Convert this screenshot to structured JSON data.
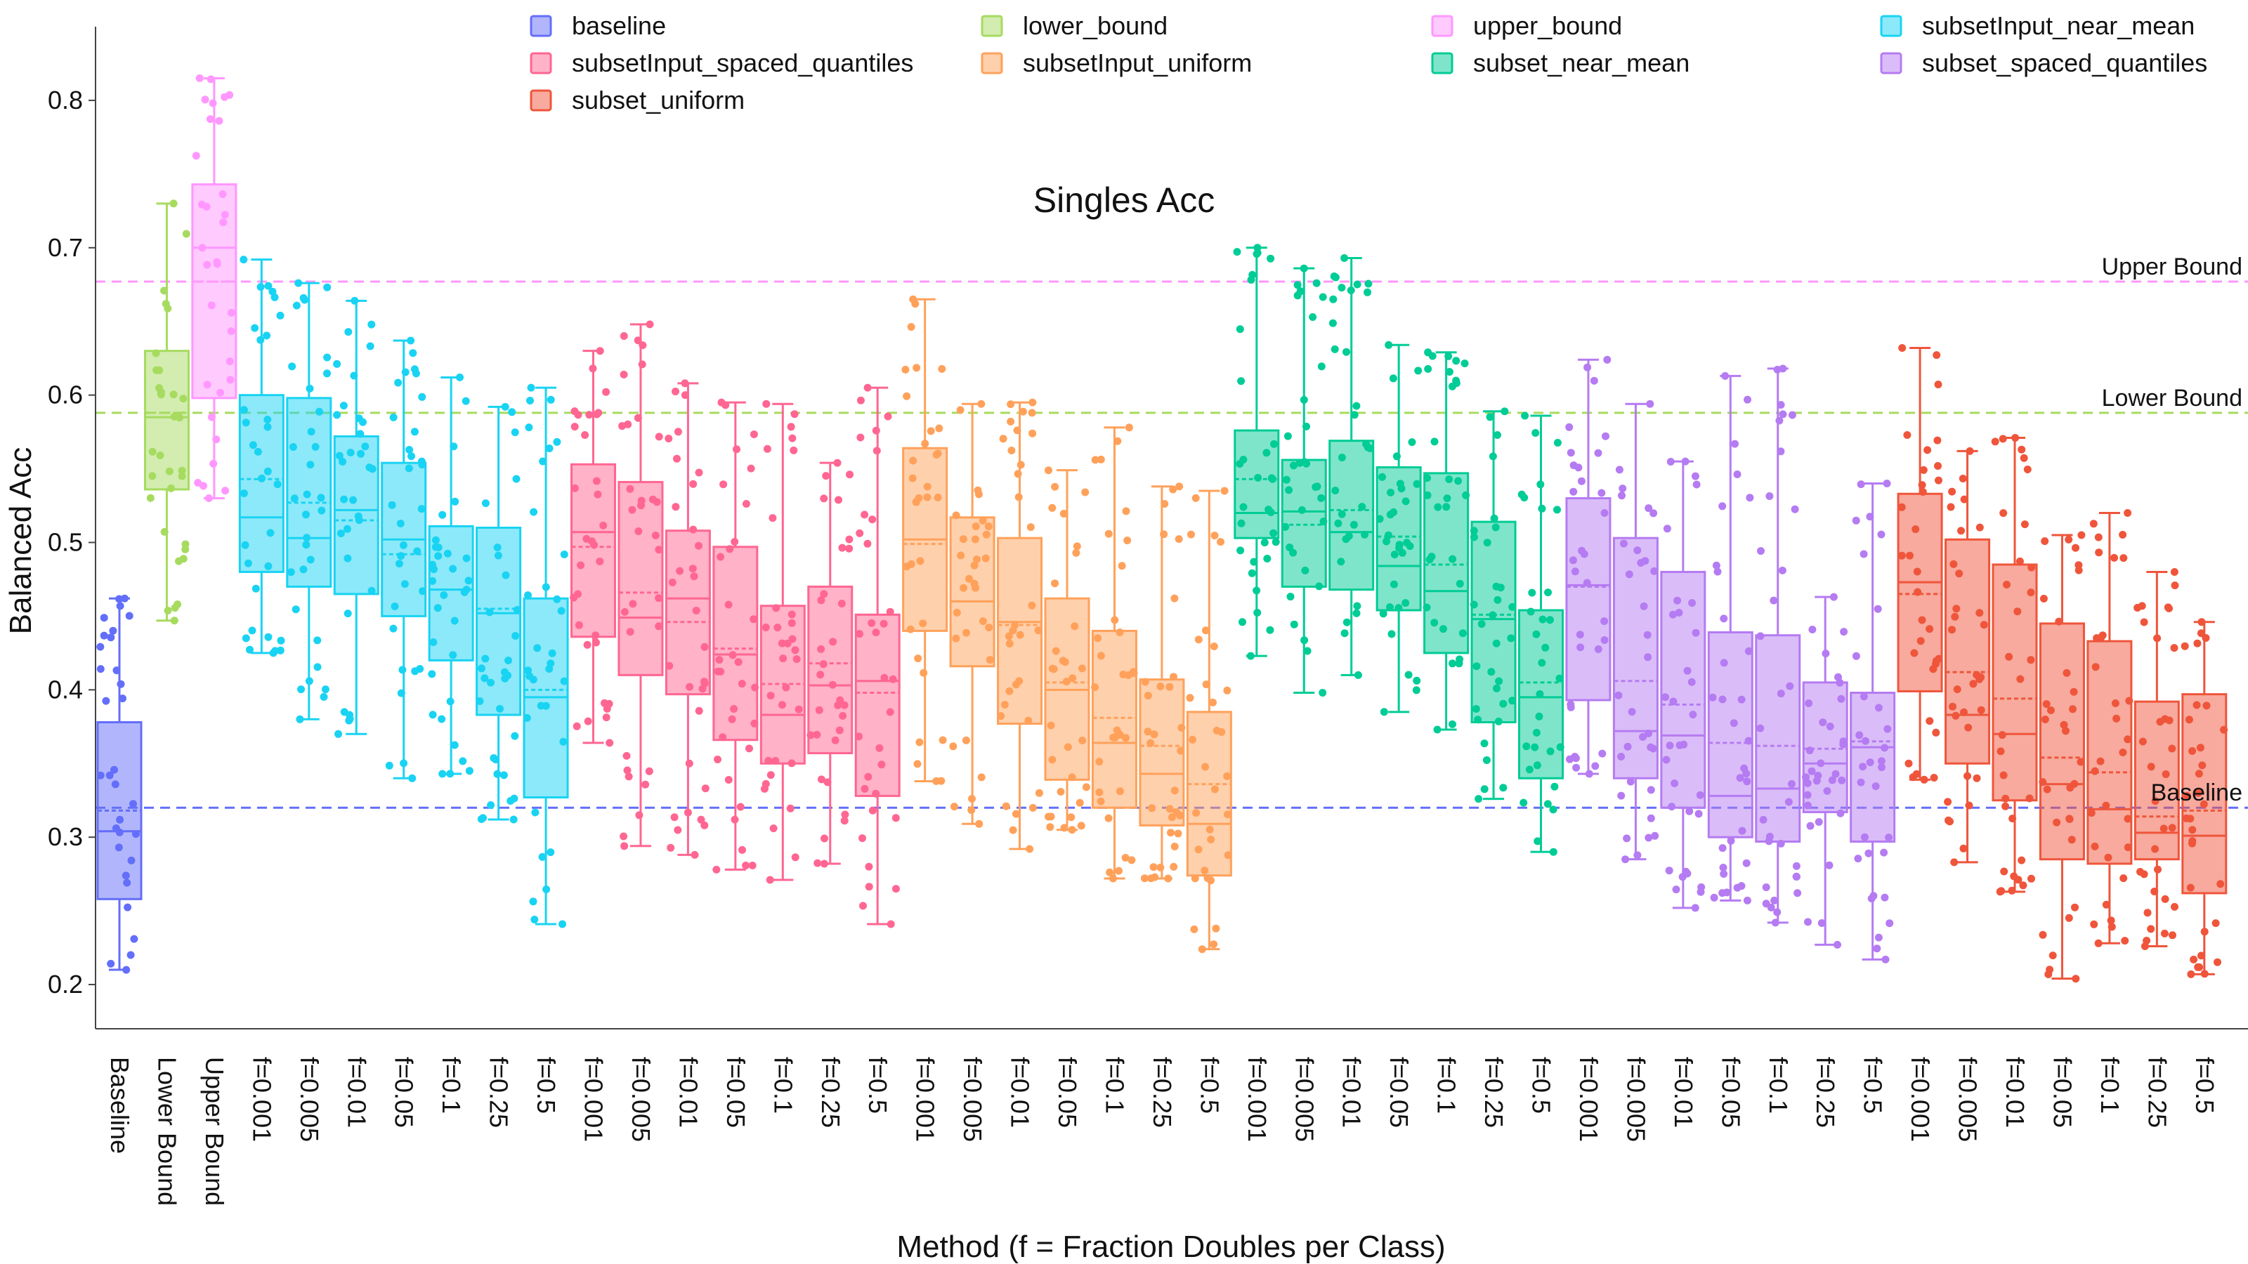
{
  "chart_data": {
    "type": "box",
    "title": "Singles Acc",
    "xlabel": "Method (f = Fraction Doubles per Class)",
    "ylabel": "Balanced Acc",
    "ylim": [
      0.17,
      0.85
    ],
    "yticks": [
      0.2,
      0.3,
      0.4,
      0.5,
      0.6,
      0.7,
      0.8
    ],
    "legend_position": "top",
    "groups": [
      {
        "key": "baseline",
        "name": "baseline",
        "color": "#636EFA"
      },
      {
        "key": "lower_bound",
        "name": "lower_bound",
        "color": "#A6DB5F"
      },
      {
        "key": "upper_bound",
        "name": "upper_bound",
        "color": "#FF97FF"
      },
      {
        "key": "subsetInput_near_mean",
        "name": "subsetInput_near_mean",
        "color": "#19D3F3"
      },
      {
        "key": "subsetInput_spaced_quantiles",
        "name": "subsetInput_spaced_quantiles",
        "color": "#FF6692"
      },
      {
        "key": "subsetInput_uniform",
        "name": "subsetInput_uniform",
        "color": "#FFA15A"
      },
      {
        "key": "subset_near_mean",
        "name": "subset_near_mean",
        "color": "#00CC96"
      },
      {
        "key": "subset_spaced_quantiles",
        "name": "subset_spaced_quantiles",
        "color": "#B57BF2"
      },
      {
        "key": "subset_uniform",
        "name": "subset_uniform",
        "color": "#EF553B"
      }
    ],
    "legend_order": [
      "baseline",
      "lower_bound",
      "upper_bound",
      "subsetInput_near_mean",
      "subsetInput_spaced_quantiles",
      "subsetInput_uniform",
      "subset_near_mean",
      "subset_spaced_quantiles",
      "subset_uniform"
    ],
    "reference_lines": [
      {
        "label": "Upper Bound",
        "value": 0.677,
        "color": "#FF97FF"
      },
      {
        "label": "Lower Bound",
        "value": 0.588,
        "color": "#A6DB5F"
      },
      {
        "label": "Baseline",
        "value": 0.32,
        "color": "#636EFA"
      }
    ],
    "categories": [
      {
        "label": "Baseline",
        "group": "baseline",
        "min": 0.21,
        "q1": 0.258,
        "median": 0.304,
        "mean": 0.318,
        "q3": 0.378,
        "max": 0.462
      },
      {
        "label": "Lower Bound",
        "group": "lower_bound",
        "min": 0.447,
        "q1": 0.536,
        "median": 0.585,
        "mean": 0.588,
        "q3": 0.63,
        "max": 0.73
      },
      {
        "label": "Upper Bound",
        "group": "upper_bound",
        "min": 0.53,
        "q1": 0.598,
        "median": 0.7,
        "mean": 0.677,
        "q3": 0.743,
        "max": 0.815
      },
      {
        "label": "f=0.001",
        "group": "subsetInput_near_mean",
        "min": 0.425,
        "q1": 0.48,
        "median": 0.517,
        "mean": 0.543,
        "q3": 0.6,
        "max": 0.692
      },
      {
        "label": "f=0.005",
        "group": "subsetInput_near_mean",
        "min": 0.38,
        "q1": 0.47,
        "median": 0.503,
        "mean": 0.527,
        "q3": 0.598,
        "max": 0.676
      },
      {
        "label": "f=0.01",
        "group": "subsetInput_near_mean",
        "min": 0.37,
        "q1": 0.465,
        "median": 0.522,
        "mean": 0.515,
        "q3": 0.572,
        "max": 0.664
      },
      {
        "label": "f=0.05",
        "group": "subsetInput_near_mean",
        "min": 0.34,
        "q1": 0.45,
        "median": 0.502,
        "mean": 0.492,
        "q3": 0.554,
        "max": 0.637
      },
      {
        "label": "f=0.1",
        "group": "subsetInput_near_mean",
        "min": 0.343,
        "q1": 0.42,
        "median": 0.468,
        "mean": 0.468,
        "q3": 0.511,
        "max": 0.612
      },
      {
        "label": "f=0.25",
        "group": "subsetInput_near_mean",
        "min": 0.312,
        "q1": 0.383,
        "median": 0.452,
        "mean": 0.455,
        "q3": 0.51,
        "max": 0.592
      },
      {
        "label": "f=0.5",
        "group": "subsetInput_near_mean",
        "min": 0.241,
        "q1": 0.327,
        "median": 0.395,
        "mean": 0.4,
        "q3": 0.462,
        "max": 0.605
      },
      {
        "label": "f=0.001",
        "group": "subsetInput_spaced_quantiles",
        "min": 0.364,
        "q1": 0.436,
        "median": 0.507,
        "mean": 0.497,
        "q3": 0.553,
        "max": 0.63
      },
      {
        "label": "f=0.005",
        "group": "subsetInput_spaced_quantiles",
        "min": 0.294,
        "q1": 0.41,
        "median": 0.449,
        "mean": 0.466,
        "q3": 0.541,
        "max": 0.648
      },
      {
        "label": "f=0.01",
        "group": "subsetInput_spaced_quantiles",
        "min": 0.288,
        "q1": 0.397,
        "median": 0.462,
        "mean": 0.446,
        "q3": 0.508,
        "max": 0.608
      },
      {
        "label": "f=0.05",
        "group": "subsetInput_spaced_quantiles",
        "min": 0.278,
        "q1": 0.366,
        "median": 0.424,
        "mean": 0.428,
        "q3": 0.497,
        "max": 0.595
      },
      {
        "label": "f=0.1",
        "group": "subsetInput_spaced_quantiles",
        "min": 0.271,
        "q1": 0.35,
        "median": 0.383,
        "mean": 0.404,
        "q3": 0.457,
        "max": 0.594
      },
      {
        "label": "f=0.25",
        "group": "subsetInput_spaced_quantiles",
        "min": 0.282,
        "q1": 0.357,
        "median": 0.403,
        "mean": 0.418,
        "q3": 0.47,
        "max": 0.554
      },
      {
        "label": "f=0.5",
        "group": "subsetInput_spaced_quantiles",
        "min": 0.241,
        "q1": 0.328,
        "median": 0.406,
        "mean": 0.398,
        "q3": 0.451,
        "max": 0.605
      },
      {
        "label": "f=0.001",
        "group": "subsetInput_uniform",
        "min": 0.338,
        "q1": 0.44,
        "median": 0.502,
        "mean": 0.499,
        "q3": 0.564,
        "max": 0.665
      },
      {
        "label": "f=0.005",
        "group": "subsetInput_uniform",
        "min": 0.309,
        "q1": 0.416,
        "median": 0.46,
        "mean": 0.46,
        "q3": 0.517,
        "max": 0.594
      },
      {
        "label": "f=0.01",
        "group": "subsetInput_uniform",
        "min": 0.292,
        "q1": 0.377,
        "median": 0.446,
        "mean": 0.444,
        "q3": 0.503,
        "max": 0.595
      },
      {
        "label": "f=0.05",
        "group": "subsetInput_uniform",
        "min": 0.305,
        "q1": 0.339,
        "median": 0.4,
        "mean": 0.405,
        "q3": 0.462,
        "max": 0.549
      },
      {
        "label": "f=0.1",
        "group": "subsetInput_uniform",
        "min": 0.272,
        "q1": 0.32,
        "median": 0.364,
        "mean": 0.381,
        "q3": 0.44,
        "max": 0.578
      },
      {
        "label": "f=0.25",
        "group": "subsetInput_uniform",
        "min": 0.272,
        "q1": 0.308,
        "median": 0.343,
        "mean": 0.362,
        "q3": 0.407,
        "max": 0.538
      },
      {
        "label": "f=0.5",
        "group": "subsetInput_uniform",
        "min": 0.224,
        "q1": 0.274,
        "median": 0.309,
        "mean": 0.336,
        "q3": 0.385,
        "max": 0.535
      },
      {
        "label": "f=0.001",
        "group": "subset_near_mean",
        "min": 0.423,
        "q1": 0.503,
        "median": 0.52,
        "mean": 0.543,
        "q3": 0.576,
        "max": 0.7
      },
      {
        "label": "f=0.005",
        "group": "subset_near_mean",
        "min": 0.398,
        "q1": 0.47,
        "median": 0.521,
        "mean": 0.512,
        "q3": 0.556,
        "max": 0.686
      },
      {
        "label": "f=0.01",
        "group": "subset_near_mean",
        "min": 0.41,
        "q1": 0.468,
        "median": 0.507,
        "mean": 0.522,
        "q3": 0.569,
        "max": 0.693
      },
      {
        "label": "f=0.05",
        "group": "subset_near_mean",
        "min": 0.385,
        "q1": 0.454,
        "median": 0.484,
        "mean": 0.504,
        "q3": 0.551,
        "max": 0.634
      },
      {
        "label": "f=0.1",
        "group": "subset_near_mean",
        "min": 0.373,
        "q1": 0.425,
        "median": 0.467,
        "mean": 0.485,
        "q3": 0.547,
        "max": 0.629
      },
      {
        "label": "f=0.25",
        "group": "subset_near_mean",
        "min": 0.326,
        "q1": 0.378,
        "median": 0.448,
        "mean": 0.451,
        "q3": 0.514,
        "max": 0.589
      },
      {
        "label": "f=0.5",
        "group": "subset_near_mean",
        "min": 0.29,
        "q1": 0.34,
        "median": 0.395,
        "mean": 0.405,
        "q3": 0.454,
        "max": 0.586
      },
      {
        "label": "f=0.001",
        "group": "subset_spaced_quantiles",
        "min": 0.343,
        "q1": 0.393,
        "median": 0.471,
        "mean": 0.47,
        "q3": 0.53,
        "max": 0.624
      },
      {
        "label": "f=0.005",
        "group": "subset_spaced_quantiles",
        "min": 0.285,
        "q1": 0.34,
        "median": 0.372,
        "mean": 0.406,
        "q3": 0.503,
        "max": 0.594
      },
      {
        "label": "f=0.01",
        "group": "subset_spaced_quantiles",
        "min": 0.252,
        "q1": 0.32,
        "median": 0.369,
        "mean": 0.39,
        "q3": 0.48,
        "max": 0.555
      },
      {
        "label": "f=0.05",
        "group": "subset_spaced_quantiles",
        "min": 0.257,
        "q1": 0.3,
        "median": 0.328,
        "mean": 0.364,
        "q3": 0.439,
        "max": 0.613
      },
      {
        "label": "f=0.1",
        "group": "subset_spaced_quantiles",
        "min": 0.242,
        "q1": 0.297,
        "median": 0.333,
        "mean": 0.362,
        "q3": 0.437,
        "max": 0.618
      },
      {
        "label": "f=0.25",
        "group": "subset_spaced_quantiles",
        "min": 0.227,
        "q1": 0.317,
        "median": 0.35,
        "mean": 0.36,
        "q3": 0.405,
        "max": 0.463
      },
      {
        "label": "f=0.5",
        "group": "subset_spaced_quantiles",
        "min": 0.217,
        "q1": 0.297,
        "median": 0.361,
        "mean": 0.365,
        "q3": 0.398,
        "max": 0.54
      },
      {
        "label": "f=0.001",
        "group": "subset_uniform",
        "min": 0.339,
        "q1": 0.399,
        "median": 0.473,
        "mean": 0.465,
        "q3": 0.533,
        "max": 0.632
      },
      {
        "label": "f=0.005",
        "group": "subset_uniform",
        "min": 0.283,
        "q1": 0.35,
        "median": 0.383,
        "mean": 0.412,
        "q3": 0.502,
        "max": 0.562
      },
      {
        "label": "f=0.01",
        "group": "subset_uniform",
        "min": 0.263,
        "q1": 0.325,
        "median": 0.37,
        "mean": 0.394,
        "q3": 0.485,
        "max": 0.571
      },
      {
        "label": "f=0.05",
        "group": "subset_uniform",
        "min": 0.204,
        "q1": 0.285,
        "median": 0.336,
        "mean": 0.354,
        "q3": 0.445,
        "max": 0.505
      },
      {
        "label": "f=0.1",
        "group": "subset_uniform",
        "min": 0.228,
        "q1": 0.282,
        "median": 0.319,
        "mean": 0.344,
        "q3": 0.433,
        "max": 0.52
      },
      {
        "label": "f=0.25",
        "group": "subset_uniform",
        "min": 0.226,
        "q1": 0.285,
        "median": 0.303,
        "mean": 0.314,
        "q3": 0.392,
        "max": 0.48
      },
      {
        "label": "f=0.5",
        "group": "subset_uniform",
        "min": 0.207,
        "q1": 0.262,
        "median": 0.301,
        "mean": 0.318,
        "q3": 0.397,
        "max": 0.446
      }
    ]
  }
}
